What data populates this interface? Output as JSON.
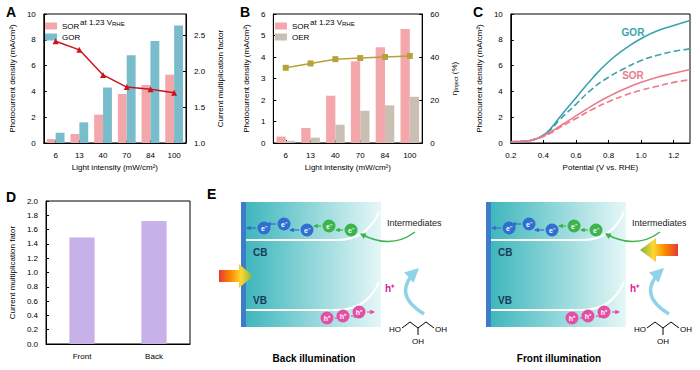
{
  "chart_data": [
    {
      "panel": "A",
      "type": "bar",
      "annotation": {
        "text": "at 1.23 V",
        "subscript": "RHE"
      },
      "x_label": "Light intensity (mW/cm²)",
      "y_label": "Photocurrent density (mA/cm²)",
      "y2_label": "Current multiplication factor",
      "categories": [
        "6",
        "13",
        "40",
        "70",
        "84",
        "100"
      ],
      "series": [
        {
          "name": "SOR",
          "color": "#f4a7ab",
          "values": [
            0.3,
            0.7,
            2.2,
            3.8,
            4.5,
            5.3
          ]
        },
        {
          "name": "GOR",
          "color": "#79bccb",
          "values": [
            0.8,
            1.6,
            4.3,
            6.8,
            7.9,
            9.1
          ]
        },
        {
          "name": "Current multiplication factor",
          "type": "line",
          "axis": "y2",
          "marker": "triangle",
          "color": "#c8161d",
          "values": [
            2.42,
            2.3,
            1.95,
            1.78,
            1.75,
            1.7
          ]
        }
      ],
      "ylim": [
        0,
        10
      ],
      "yticks": [
        0,
        2,
        4,
        6,
        8,
        10
      ],
      "y2lim": [
        1.0,
        2.8
      ],
      "y2ticks": [
        {
          "value": 1,
          "label": "1.0"
        },
        1.5,
        {
          "value": 2,
          "label": "2.0"
        },
        2.5
      ],
      "legend": "upper left",
      "grid": false
    },
    {
      "panel": "B",
      "type": "bar",
      "annotation": {
        "text": "at 1.23 V",
        "subscript": "RHE"
      },
      "x_label": "Light intensity (mW/cm²)",
      "y_label": "Photocurrent density (mA/cm²)",
      "y2_label": {
        "text": "η",
        "subscript": "Inject",
        "suffix": " (%)"
      },
      "categories": [
        "6",
        "13",
        "40",
        "70",
        "84",
        "100"
      ],
      "series": [
        {
          "name": "SOR",
          "color": "#f4a7ab",
          "values": [
            0.3,
            0.7,
            2.2,
            3.8,
            4.45,
            5.3
          ]
        },
        {
          "name": "OER",
          "color": "#c9c0b3",
          "values": [
            0.1,
            0.25,
            0.85,
            1.5,
            1.75,
            2.15
          ]
        },
        {
          "name": "ηInject (%)",
          "type": "line",
          "axis": "y2",
          "marker": "square",
          "color": "#b5a33a",
          "values": [
            35,
            37,
            39,
            39.5,
            40,
            40.5
          ]
        }
      ],
      "ylim": [
        0,
        6
      ],
      "yticks": [
        0,
        1,
        2,
        3,
        4,
        5,
        6
      ],
      "y2lim": [
        0,
        60
      ],
      "y2ticks": [
        0,
        20,
        40,
        60
      ],
      "legend": "upper left",
      "grid": false
    },
    {
      "panel": "C",
      "type": "line",
      "x_label": "Potential (V vs. RHE)",
      "y_label": "Photocurrent density (mA/cm²)",
      "x": [
        0.2,
        0.3,
        0.35,
        0.4,
        0.45,
        0.5,
        0.6,
        0.7,
        0.8,
        0.9,
        1.0,
        1.1,
        1.2,
        1.3
      ],
      "series": [
        {
          "name": "GOR",
          "color": "#3aa3ad",
          "line_style": "solid",
          "values": [
            0.1,
            0.15,
            0.3,
            0.6,
            1.2,
            2.0,
            3.5,
            5.0,
            6.3,
            7.3,
            8.1,
            8.7,
            9.1,
            9.5
          ]
        },
        {
          "name": "GOR",
          "color": "#3aa3ad",
          "line_style": "dashed",
          "values": [
            0.1,
            0.15,
            0.3,
            0.6,
            1.1,
            1.8,
            3.0,
            4.2,
            5.1,
            5.8,
            6.4,
            6.8,
            7.1,
            7.3
          ]
        },
        {
          "name": "SOR",
          "color": "#e87c8c",
          "line_style": "solid",
          "values": [
            0.1,
            0.15,
            0.3,
            0.55,
            0.9,
            1.3,
            2.1,
            2.9,
            3.6,
            4.2,
            4.7,
            5.1,
            5.4,
            5.7
          ]
        },
        {
          "name": "SOR",
          "color": "#e87c8c",
          "line_style": "dashed",
          "values": [
            0.1,
            0.15,
            0.3,
            0.5,
            0.8,
            1.2,
            1.9,
            2.6,
            3.2,
            3.7,
            4.1,
            4.4,
            4.7,
            4.9
          ]
        }
      ],
      "annotations": [
        {
          "text": "GOR",
          "x": 0.95,
          "y": 8.6,
          "color": "#3aa3ad"
        },
        {
          "text": "SOR",
          "x": 0.95,
          "y": 5.2,
          "color": "#e87c8c"
        }
      ],
      "xlim": [
        0.2,
        1.3
      ],
      "xticks": [
        0.2,
        0.4,
        0.6,
        0.8,
        {
          "value": 1,
          "label": "1.0"
        },
        1.2
      ],
      "ylim": [
        0,
        10
      ],
      "yticks": [
        0,
        2,
        4,
        6,
        8,
        10
      ],
      "grid": false
    },
    {
      "panel": "D",
      "type": "bar",
      "y_label": "Current multiplication fator",
      "categories": [
        "Front",
        "Back"
      ],
      "values": [
        1.49,
        1.72
      ],
      "color": "#c6b2e8",
      "ylim": [
        0,
        2
      ],
      "yticks": [
        {
          "value": 0,
          "label": "0.0"
        },
        0.2,
        0.4,
        0.6,
        0.8,
        {
          "value": 1,
          "label": "1.0"
        },
        1.2,
        1.4,
        1.6,
        1.8,
        {
          "value": 2,
          "label": "2.0"
        }
      ],
      "grid": false
    }
  ],
  "diagram": {
    "panel": "E",
    "views": [
      {
        "caption": "Back illumination",
        "band_labels": [
          "CB",
          "VB"
        ],
        "electron": "e⁻",
        "hole": "h⁺",
        "intermediates": "Intermediates",
        "oxidant": "h⁺",
        "molecule_labels": [
          "HO",
          "OH",
          "OH"
        ]
      },
      {
        "caption": "Front illumination",
        "band_labels": [
          "CB",
          "VB"
        ],
        "electron": "e⁻",
        "hole": "h⁺",
        "intermediates": "Intermediates",
        "oxidant": "h⁺",
        "molecule_labels": [
          "HO",
          "OH",
          "OH"
        ]
      }
    ]
  }
}
